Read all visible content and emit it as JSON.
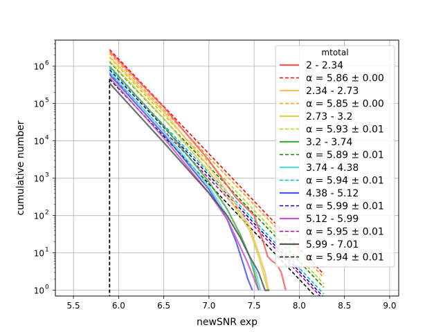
{
  "chart_data": {
    "type": "line",
    "title": "",
    "xlabel": "newSNR exp",
    "ylabel": "cumulative number",
    "xlim": [
      5.3,
      9.1
    ],
    "ylim": [
      0.7,
      5000000
    ],
    "yscale": "log",
    "grid": true,
    "x_ticks": [
      5.5,
      6.0,
      6.5,
      7.0,
      7.5,
      8.0,
      8.5,
      9.0
    ],
    "x_tick_labels": [
      "5.5",
      "6.0",
      "6.5",
      "7.0",
      "7.5",
      "8.0",
      "8.5",
      "9.0"
    ],
    "y_ticks": [
      1,
      10,
      100,
      1000,
      10000,
      100000,
      1000000
    ],
    "y_tick_labels": [
      "10",
      "10",
      "10",
      "10",
      "10",
      "10",
      "10"
    ],
    "y_tick_exponents": [
      "0",
      "1",
      "2",
      "3",
      "4",
      "5",
      "6"
    ],
    "legend": {
      "title": "mtotal",
      "placement": "upper right",
      "entries": [
        {
          "label": "2 - 2.34",
          "color": "#ff5555",
          "style": "solid"
        },
        {
          "label": "α = 5.86 ± 0.00",
          "color": "#ff0000",
          "style": "dashed"
        },
        {
          "label": "2.34 - 2.73",
          "color": "#ffc060",
          "style": "solid"
        },
        {
          "label": "α = 5.85 ± 0.00",
          "color": "#ff9900",
          "style": "dashed"
        },
        {
          "label": "2.73 - 3.2",
          "color": "#d4d455",
          "style": "solid"
        },
        {
          "label": "α = 5.93 ± 0.01",
          "color": "#c8c800",
          "style": "dashed"
        },
        {
          "label": "3.2 - 3.74",
          "color": "#44aa44",
          "style": "solid"
        },
        {
          "label": "α = 5.89 ± 0.01",
          "color": "#008800",
          "style": "dashed"
        },
        {
          "label": "3.74 - 4.38",
          "color": "#55dddd",
          "style": "solid"
        },
        {
          "label": "α = 5.94 ± 0.01",
          "color": "#00bbbb",
          "style": "dashed"
        },
        {
          "label": "4.38 - 5.12",
          "color": "#4455ee",
          "style": "solid"
        },
        {
          "label": "α = 5.99 ± 0.01",
          "color": "#0000cc",
          "style": "dashed"
        },
        {
          "label": "5.12 - 5.99",
          "color": "#cc55cc",
          "style": "solid"
        },
        {
          "label": "α = 5.95 ± 0.01",
          "color": "#aa00aa",
          "style": "dashed"
        },
        {
          "label": "5.99 - 7.01",
          "color": "#555555",
          "style": "solid"
        },
        {
          "label": "α = 5.94 ± 0.01",
          "color": "#000000",
          "style": "dashed"
        }
      ]
    },
    "fit_series": [
      {
        "name": "α = 5.86 ± 0.00",
        "color": "#ff0000",
        "x": [
          5.9,
          8.27
        ],
        "y": [
          2800000,
          2.7
        ]
      },
      {
        "name": "α = 5.85 ± 0.00",
        "color": "#ff9900",
        "x": [
          5.9,
          8.27
        ],
        "y": [
          2200000,
          2.2
        ]
      },
      {
        "name": "α = 5.93 ± 0.01",
        "color": "#c8c800",
        "x": [
          5.9,
          8.27
        ],
        "y": [
          1700000,
          1.5
        ]
      },
      {
        "name": "α = 5.89 ± 0.01",
        "color": "#008800",
        "x": [
          5.9,
          8.27
        ],
        "y": [
          1300000,
          1.2
        ]
      },
      {
        "name": "α = 5.94 ± 0.01",
        "color": "#00bbbb",
        "x": [
          5.9,
          8.27
        ],
        "y": [
          900000,
          0.8
        ]
      },
      {
        "name": "α = 5.99 ± 0.01",
        "color": "#0000cc",
        "x": [
          5.9,
          8.27
        ],
        "y": [
          800000,
          0.65
        ]
      },
      {
        "name": "α = 5.95 ± 0.01",
        "color": "#aa00aa",
        "x": [
          5.9,
          8.27
        ],
        "y": [
          650000,
          0.55
        ]
      },
      {
        "name": "α = 5.94 ± 0.01",
        "color": "#000000",
        "x": [
          5.9,
          8.27
        ],
        "y": [
          450000,
          0.4
        ]
      }
    ],
    "series": [
      {
        "name": "2 - 2.34",
        "color": "#ff5555",
        "x": [
          5.9,
          6.5,
          7.0,
          7.3,
          7.5,
          7.6,
          7.65,
          7.7,
          7.75,
          7.8,
          7.85
        ],
        "y": [
          2500000,
          80000,
          3000,
          300,
          100,
          20,
          8,
          6,
          5,
          3,
          1
        ]
      },
      {
        "name": "2.34 - 2.73",
        "color": "#ffc060",
        "x": [
          5.9,
          6.5,
          7.0,
          7.3,
          7.45,
          7.55,
          7.62,
          7.66
        ],
        "y": [
          1800000,
          60000,
          2000,
          200,
          50,
          10,
          3,
          1
        ]
      },
      {
        "name": "2.73 - 3.2",
        "color": "#d4d455",
        "x": [
          5.9,
          6.5,
          7.0,
          7.3,
          7.45,
          7.55,
          7.6,
          7.65
        ],
        "y": [
          1400000,
          40000,
          1500,
          150,
          40,
          8,
          3,
          1
        ]
      },
      {
        "name": "3.2 - 3.74",
        "color": "#44aa44",
        "x": [
          5.9,
          6.5,
          7.0,
          7.2,
          7.35,
          7.45,
          7.5,
          7.55
        ],
        "y": [
          1000000,
          25000,
          800,
          150,
          30,
          8,
          3,
          1
        ]
      },
      {
        "name": "3.74 - 4.38",
        "color": "#55dddd",
        "x": [
          5.9,
          6.5,
          7.0,
          7.2,
          7.35,
          7.45,
          7.52,
          7.57
        ],
        "y": [
          700000,
          18000,
          600,
          100,
          25,
          8,
          3,
          1
        ]
      },
      {
        "name": "4.38 - 5.12",
        "color": "#4455ee",
        "x": [
          5.9,
          6.5,
          7.0,
          7.2,
          7.3,
          7.38,
          7.43,
          7.48
        ],
        "y": [
          600000,
          15000,
          500,
          80,
          20,
          5,
          2,
          1
        ]
      },
      {
        "name": "5.12 - 5.99",
        "color": "#cc55cc",
        "x": [
          5.9,
          6.5,
          7.0,
          7.2,
          7.32,
          7.42,
          7.5,
          7.55
        ],
        "y": [
          500000,
          12000,
          400,
          80,
          20,
          6,
          2,
          1
        ]
      },
      {
        "name": "5.99 - 7.01",
        "color": "#555555",
        "x": [
          5.9,
          6.5,
          7.0,
          7.2,
          7.35,
          7.45,
          7.55,
          7.62,
          7.67
        ],
        "y": [
          350000,
          9000,
          400,
          100,
          25,
          8,
          3,
          1,
          1
        ]
      }
    ],
    "threshold_line": {
      "x": 5.9,
      "y_top": 450000,
      "color": "#000000"
    }
  }
}
